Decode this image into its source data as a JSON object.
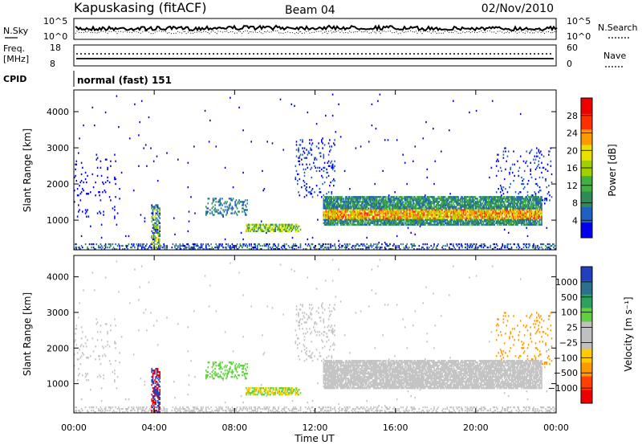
{
  "header": {
    "station": "Kapuskasing (fitACF)",
    "beam": "Beam 04",
    "date": "02/Nov/2010"
  },
  "noise_panel": {
    "left_label": "N.Sky",
    "right_label": "N.Search",
    "ticks_left": [
      "10^5",
      "10^0"
    ],
    "ticks_right": [
      "10^5",
      "10^0"
    ]
  },
  "freq_panel": {
    "left_label_line1": "Freq.",
    "left_label_line2": "[MHz]",
    "ticks_left": [
      "18",
      "8"
    ],
    "right_label": "Nave",
    "ticks_right": [
      "60",
      "0"
    ]
  },
  "cpid": {
    "label": "CPID",
    "mode": "normal (fast) 151"
  },
  "colors": {
    "power_scale": [
      "#0000ee",
      "#2060c0",
      "#2e8b57",
      "#40b040",
      "#a0d000",
      "#e8e000",
      "#ff9900",
      "#ff3000",
      "#ee0000"
    ],
    "velocity_scale": [
      "#2040c0",
      "#2e6e8e",
      "#2ea060",
      "#60d040",
      "#c0c0c0",
      "#c0c0c0",
      "#ffcc00",
      "#ff9900",
      "#ff4000",
      "#ee0000"
    ]
  },
  "chart_data": [
    {
      "type": "heatmap",
      "panel": "power",
      "xlabel": "Time UT",
      "ylabel": "Slant Range [km]",
      "x_ticks": [
        "00:00",
        "04:00",
        "08:00",
        "12:00",
        "16:00",
        "20:00",
        "00:00"
      ],
      "y_ticks": [
        "1000",
        "2000",
        "3000",
        "4000"
      ],
      "xlim_hours": [
        0,
        24
      ],
      "ylim_km": [
        180,
        4600
      ],
      "colorbar": {
        "label": "Power [dB]",
        "ticks": [
          "4",
          "8",
          "12",
          "16",
          "20",
          "24",
          "28"
        ],
        "range": [
          0,
          30
        ]
      },
      "features": [
        {
          "t": [
            12.5,
            23.2
          ],
          "r": [
            900,
            1650
          ],
          "intensity": "high",
          "value_db": 22
        },
        {
          "t": [
            8.5,
            11.2
          ],
          "r": [
            650,
            900
          ],
          "intensity": "medium",
          "value_db": 14
        },
        {
          "t": [
            6.5,
            8.5
          ],
          "r": [
            1100,
            1600
          ],
          "intensity": "low",
          "value_db": 8
        },
        {
          "t": [
            3.8,
            4.3
          ],
          "r": [
            200,
            1400
          ],
          "intensity": "medium",
          "value_db": 12
        }
      ]
    },
    {
      "type": "heatmap",
      "panel": "velocity",
      "xlabel": "Time UT",
      "ylabel": "Slant Range [km]",
      "x_ticks": [
        "00:00",
        "04:00",
        "08:00",
        "12:00",
        "16:00",
        "20:00",
        "00:00"
      ],
      "y_ticks": [
        "1000",
        "2000",
        "3000",
        "4000"
      ],
      "xlim_hours": [
        0,
        24
      ],
      "ylim_km": [
        180,
        4600
      ],
      "colorbar": {
        "label": "Velocity [m s⁻¹]",
        "ticks": [
          "1000",
          "500",
          "100",
          "25",
          "−25",
          "−100",
          "−500",
          "−1000"
        ],
        "range": [
          -1200,
          1200
        ]
      }
    }
  ]
}
